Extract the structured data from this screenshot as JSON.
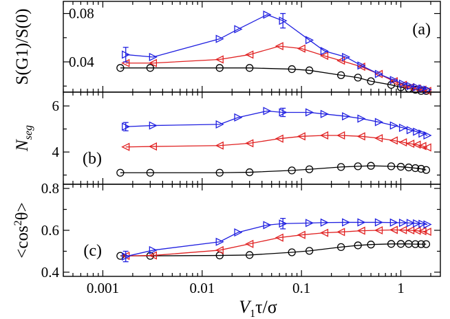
{
  "chart_data": {
    "type": "line",
    "xscale": "log",
    "xlim": [
      0.0004,
      2.5
    ],
    "xlabel": "V1τ/σ",
    "xlabel_main": "V",
    "xlabel_sub": "1",
    "xlabel_rest": "τ/σ",
    "xticks": [
      0.001,
      0.01,
      0.1,
      1
    ],
    "xtick_labels": [
      "0.001",
      "0.01",
      "0.1",
      "1"
    ],
    "colors": {
      "blue": "#1f1fe0",
      "red": "#e02020",
      "black": "#000000"
    },
    "x": [
      0.0015,
      0.003,
      0.015,
      0.03,
      0.08,
      0.12,
      0.25,
      0.37,
      0.5,
      0.8,
      1.0,
      1.2,
      1.4,
      1.6,
      1.8
    ],
    "panels": [
      {
        "id": "a",
        "panel_label": "(a)",
        "ylabel": "S(G1)/S(0)",
        "ylim": [
          0.015,
          0.09
        ],
        "yticks": [
          0.04,
          0.08
        ],
        "ytick_labels": [
          "0.04",
          "0.08"
        ],
        "ytick_labels_inside": true,
        "series": [
          {
            "name": "blue",
            "marker": "triangle-right",
            "x": [
              0.0017,
              0.0032,
              0.015,
              0.023,
              0.045,
              0.065,
              0.12,
              0.17,
              0.28,
              0.4,
              0.6,
              0.85,
              1.05,
              1.25,
              1.45,
              1.65,
              1.85
            ],
            "y": [
              0.046,
              0.044,
              0.059,
              0.067,
              0.079,
              0.074,
              0.058,
              0.049,
              0.044,
              0.037,
              0.03,
              0.025,
              0.022,
              0.02,
              0.019,
              0.018,
              0.017
            ],
            "errorbars": [
              {
                "x": 0.0017,
                "y": 0.046,
                "err": 0.006
              },
              {
                "x": 0.065,
                "y": 0.074,
                "err": 0.006
              }
            ]
          },
          {
            "name": "red",
            "marker": "triangle-left",
            "x": [
              0.0017,
              0.0032,
              0.015,
              0.03,
              0.06,
              0.1,
              0.17,
              0.25,
              0.4,
              0.6,
              0.85,
              1.05,
              1.25,
              1.45,
              1.65,
              1.85
            ],
            "y": [
              0.039,
              0.039,
              0.042,
              0.046,
              0.053,
              0.051,
              0.045,
              0.041,
              0.036,
              0.03,
              0.024,
              0.021,
              0.019,
              0.018,
              0.017,
              0.016
            ]
          },
          {
            "name": "black",
            "marker": "circle",
            "x": [
              0.0015,
              0.003,
              0.015,
              0.03,
              0.08,
              0.12,
              0.25,
              0.37,
              0.5,
              0.8,
              1.0,
              1.2,
              1.4,
              1.6,
              1.8
            ],
            "y": [
              0.035,
              0.035,
              0.035,
              0.035,
              0.034,
              0.033,
              0.029,
              0.027,
              0.024,
              0.021,
              0.019,
              0.018,
              0.017,
              0.016,
              0.016
            ]
          }
        ]
      },
      {
        "id": "b",
        "panel_label": "(b)",
        "ylabel": "Nseg",
        "ylabel_main": "N",
        "ylabel_sub": "seg",
        "ylim": [
          2.6,
          6.6
        ],
        "yticks": [
          4,
          6
        ],
        "ytick_labels": [
          "4",
          "6"
        ],
        "series": [
          {
            "name": "blue",
            "marker": "triangle-right",
            "x": [
              0.0017,
              0.0032,
              0.015,
              0.023,
              0.045,
              0.065,
              0.12,
              0.17,
              0.28,
              0.4,
              0.6,
              0.85,
              1.05,
              1.25,
              1.45,
              1.65,
              1.85
            ],
            "y": [
              5.1,
              5.15,
              5.2,
              5.5,
              5.78,
              5.72,
              5.72,
              5.65,
              5.55,
              5.45,
              5.3,
              5.15,
              5.05,
              4.95,
              4.88,
              4.8,
              4.72
            ],
            "errorbars": [
              {
                "x": 0.0017,
                "y": 5.1,
                "err": 0.18
              },
              {
                "x": 0.065,
                "y": 5.72,
                "err": 0.18
              }
            ]
          },
          {
            "name": "red",
            "marker": "triangle-left",
            "x": [
              0.0017,
              0.0032,
              0.015,
              0.03,
              0.06,
              0.1,
              0.17,
              0.25,
              0.4,
              0.6,
              0.85,
              1.05,
              1.25,
              1.45,
              1.65,
              1.85
            ],
            "y": [
              4.22,
              4.24,
              4.28,
              4.38,
              4.58,
              4.68,
              4.72,
              4.72,
              4.68,
              4.6,
              4.5,
              4.42,
              4.36,
              4.32,
              4.26,
              4.2
            ]
          },
          {
            "name": "black",
            "marker": "circle",
            "x": [
              0.0015,
              0.003,
              0.015,
              0.03,
              0.08,
              0.12,
              0.25,
              0.37,
              0.5,
              0.8,
              1.0,
              1.2,
              1.4,
              1.6,
              1.8
            ],
            "y": [
              3.1,
              3.1,
              3.1,
              3.12,
              3.2,
              3.25,
              3.35,
              3.38,
              3.4,
              3.38,
              3.36,
              3.33,
              3.3,
              3.27,
              3.22
            ]
          }
        ]
      },
      {
        "id": "c",
        "panel_label": "(c)",
        "ylabel": "<cos2θ>",
        "ylabel_main": "<cos",
        "ylabel_sup": "2",
        "ylabel_rest": "θ>",
        "ylim": [
          0.38,
          0.82
        ],
        "yticks": [
          0.4,
          0.6,
          0.8
        ],
        "ytick_labels": [
          "0.4",
          "0.6",
          "0.8"
        ],
        "series": [
          {
            "name": "blue",
            "marker": "triangle-right",
            "x": [
              0.0017,
              0.0032,
              0.015,
              0.023,
              0.045,
              0.065,
              0.12,
              0.17,
              0.28,
              0.4,
              0.6,
              0.85,
              1.05,
              1.25,
              1.45,
              1.65,
              1.85
            ],
            "y": [
              0.475,
              0.505,
              0.545,
              0.59,
              0.625,
              0.632,
              0.635,
              0.637,
              0.638,
              0.638,
              0.638,
              0.637,
              0.636,
              0.635,
              0.633,
              0.631,
              0.628
            ],
            "errorbars": [
              {
                "x": 0.0017,
                "y": 0.475,
                "err": 0.025
              },
              {
                "x": 0.065,
                "y": 0.632,
                "err": 0.025
              }
            ]
          },
          {
            "name": "red",
            "marker": "triangle-left",
            "x": [
              0.0017,
              0.0032,
              0.015,
              0.03,
              0.06,
              0.1,
              0.17,
              0.25,
              0.4,
              0.6,
              0.85,
              1.05,
              1.25,
              1.45,
              1.65,
              1.85
            ],
            "y": [
              0.478,
              0.48,
              0.505,
              0.535,
              0.565,
              0.578,
              0.588,
              0.592,
              0.598,
              0.6,
              0.602,
              0.601,
              0.6,
              0.598,
              0.596,
              0.593
            ]
          },
          {
            "name": "black",
            "marker": "circle",
            "x": [
              0.0015,
              0.003,
              0.015,
              0.03,
              0.08,
              0.12,
              0.25,
              0.37,
              0.5,
              0.8,
              1.0,
              1.2,
              1.4,
              1.6,
              1.8
            ],
            "y": [
              0.478,
              0.478,
              0.48,
              0.482,
              0.495,
              0.502,
              0.52,
              0.528,
              0.532,
              0.535,
              0.535,
              0.535,
              0.534,
              0.534,
              0.534
            ]
          }
        ]
      }
    ]
  }
}
